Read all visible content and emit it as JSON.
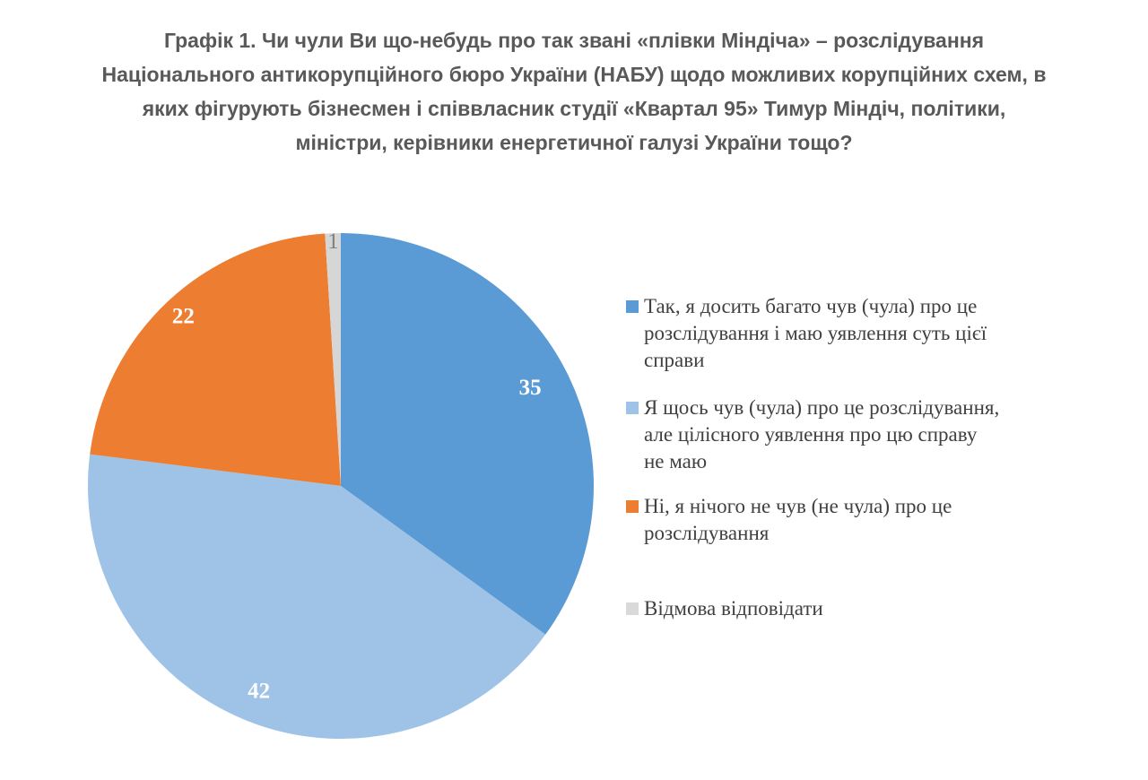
{
  "title": {
    "full": "Графік 1. Чи чули Ви що-небудь про так звані «плівки Міндіча» – розслідування Національного антикорупційного бюро України (НАБУ) щодо можливих корупційних схем, в яких фігурують бізнесмен і співвласник студії «Квартал 95» Тимур Міндіч, політики, міністри, керівники енергетичної галузі України тощо?",
    "lines": [
      "Графік 1. Чи чули Ви що-небудь про так звані «плівки Міндіча» – розслідування",
      "Національного антикорупційного бюро України (НАБУ) щодо можливих корупційних схем, в",
      "яких фігурують бізнесмен і співвласник студії «Квартал 95» Тимур Міндіч, політики,",
      "міністри, керівники енергетичної галузі України тощо?"
    ]
  },
  "chart_data": {
    "type": "pie",
    "title": "Графік 1. Чи чули Ви що-небудь про так звані «плівки Міндіча» – розслідування Національного антикорупційного бюро України (НАБУ) щодо можливих корупційних схем, в яких фігурують бізнесмен і співвласник студії «Квартал 95» Тимур Міндіч, політики, міністри, керівники енергетичної галузі України тощо?",
    "labels": [
      "Так, я досить багато чув (чула) про це розслідування і маю уявлення суть цієї справи",
      "Я щось чув (чула) про це розслідування, але цілісного уявлення про цю справу не маю",
      "Ні, я нічого не чув (не чула) про це розслідування",
      "Відмова відповідати"
    ],
    "values": [
      35,
      42,
      22,
      1
    ],
    "colors": [
      "#5B9BD5",
      "#9EC3E7",
      "#ED7D31",
      "#D6D6D6"
    ],
    "start_angle_deg": 0,
    "direction": "clockwise",
    "data_label_color": "#FFFFFF",
    "small_slice_label_color": "#808080",
    "legend_position": "right"
  },
  "legend": {
    "items": [
      {
        "color": "#5B9BD5",
        "label": "Так, я досить багато чув (чула) про це розслідування і маю уявлення суть цієї справи",
        "lines": [
          "Так, я досить багато чув (чула) про це",
          "розслідування і маю уявлення суть цієї",
          "справи"
        ]
      },
      {
        "color": "#9EC3E7",
        "label": "Я щось чув (чула) про це розслідування, але цілісного уявлення про цю справу не маю",
        "lines": [
          "Я щось чув (чула) про це розслідування,",
          "але цілісного уявлення про цю справу",
          "не маю"
        ]
      },
      {
        "color": "#ED7D31",
        "label": "Ні, я нічого не чув (не чула) про це розслідування",
        "lines": [
          "Ні, я нічого не чув (не чула) про це",
          "розслідування"
        ]
      },
      {
        "color": "#D9D9D9",
        "label": "Відмова відповідати",
        "lines": [
          "Відмова відповідати"
        ]
      }
    ]
  }
}
